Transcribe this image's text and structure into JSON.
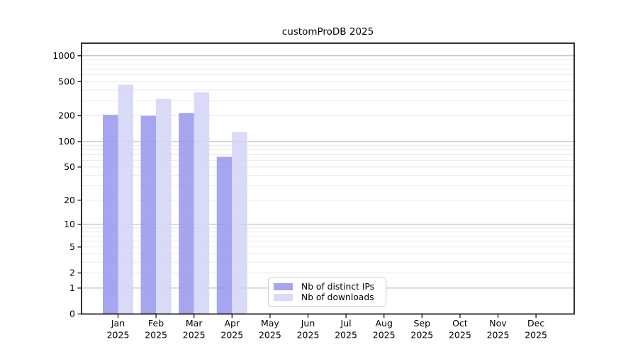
{
  "figure": {
    "background": "#ffffff"
  },
  "chart_data": {
    "type": "bar",
    "title": "customProDB 2025",
    "categories": [
      "Jan 2025",
      "Feb 2025",
      "Mar 2025",
      "Apr 2025",
      "May 2025",
      "Jun 2025",
      "Jul 2025",
      "Aug 2025",
      "Sep 2025",
      "Oct 2025",
      "Nov 2025",
      "Dec 2025"
    ],
    "series": [
      {
        "name": "Nb of distinct IPs",
        "color": "#9898ee",
        "values": [
          205,
          200,
          215,
          66,
          null,
          null,
          null,
          null,
          null,
          null,
          null,
          null
        ]
      },
      {
        "name": "Nb of downloads",
        "color": "#d4d4f7",
        "values": [
          460,
          315,
          375,
          129,
          null,
          null,
          null,
          null,
          null,
          null,
          null,
          null
        ]
      }
    ],
    "xlabel": "",
    "ylabel": "",
    "yscale": "log1p",
    "yticks": [
      0,
      1,
      2,
      5,
      10,
      20,
      50,
      100,
      200,
      500,
      1000
    ],
    "ylim": [
      0,
      1400
    ],
    "grid": {
      "major_ticks": [
        1,
        10,
        100,
        1000
      ],
      "major_color": "#b0b0b0",
      "minor_color": "#eaeaea"
    },
    "legend_position": "bottom-center",
    "axis_color": "#000000",
    "tick_label_color": "#000000"
  }
}
